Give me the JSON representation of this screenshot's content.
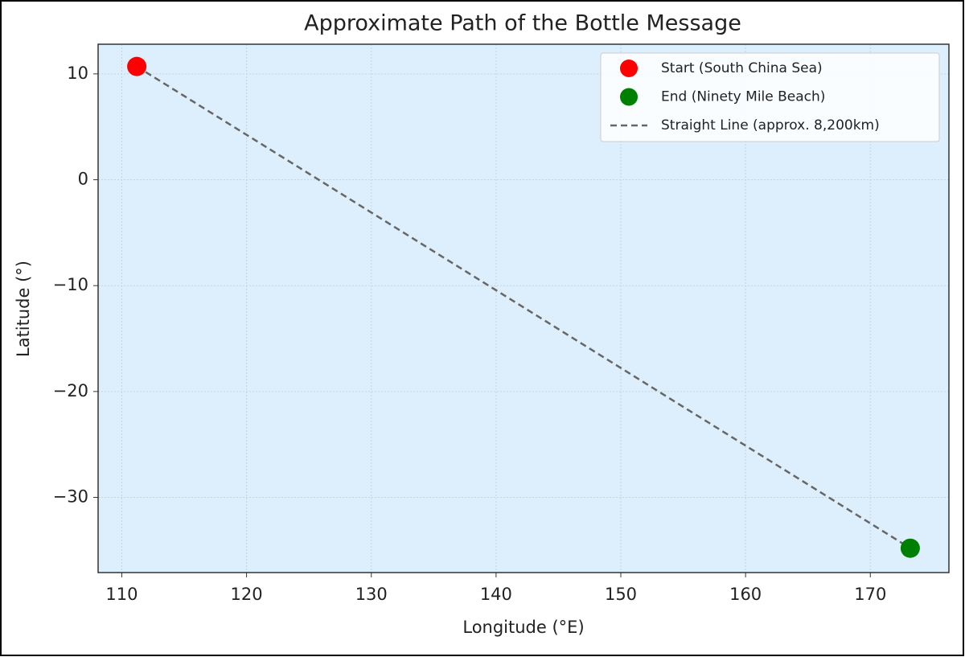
{
  "chart_data": {
    "type": "scatter",
    "title": "Approximate Path of the Bottle Message",
    "x_label": "Longitude (°E)",
    "y_label": "Latitude (°)",
    "xlim": [
      108.1,
      176.3
    ],
    "ylim": [
      -37.1,
      12.8
    ],
    "xticks": [
      110,
      120,
      130,
      140,
      150,
      160,
      170
    ],
    "yticks": [
      {
        "value": -30,
        "label": "−30"
      },
      {
        "value": -20,
        "label": "−20"
      },
      {
        "value": -10,
        "label": "−10"
      },
      0,
      10
    ],
    "grid": true,
    "legend": "upper right",
    "background": "#ddeefc",
    "series": [
      {
        "name": "Straight Line (approx. 8,200km)",
        "style": "dashed",
        "color": "#666666",
        "x": [
          111.2,
          173.2
        ],
        "values": [
          10.7,
          -34.8
        ]
      },
      {
        "name": "Start (South China Sea)",
        "style": "marker",
        "color": "#ff0000",
        "x": [
          111.2
        ],
        "values": [
          10.7
        ]
      },
      {
        "name": "End (Ninety Mile Beach)",
        "style": "marker",
        "color": "#008000",
        "x": [
          173.2
        ],
        "values": [
          -34.8
        ]
      }
    ]
  }
}
